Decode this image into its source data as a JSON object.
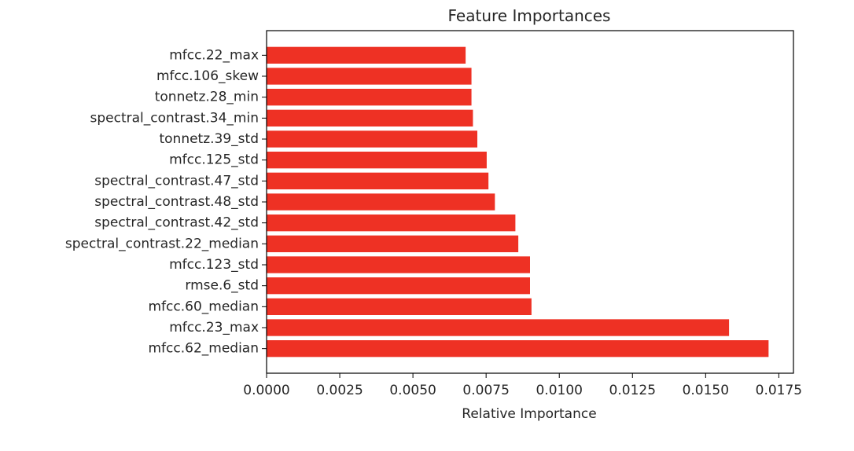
{
  "chart_data": {
    "type": "bar",
    "orientation": "horizontal",
    "title": "Feature Importances",
    "xlabel": "Relative Importance",
    "ylabel": "",
    "xlim": [
      0,
      0.018
    ],
    "xticks": [
      "0.0000",
      "0.0025",
      "0.0050",
      "0.0075",
      "0.0100",
      "0.0125",
      "0.0150",
      "0.0175"
    ],
    "xtick_values": [
      0,
      0.0025,
      0.005,
      0.0075,
      0.01,
      0.0125,
      0.015,
      0.0175
    ],
    "bar_color": "#ee3124",
    "grid": false,
    "categories": [
      "mfcc.62_median",
      "mfcc.23_max",
      "mfcc.60_median",
      "rmse.6_std",
      "mfcc.123_std",
      "spectral_contrast.22_median",
      "spectral_contrast.42_std",
      "spectral_contrast.48_std",
      "spectral_contrast.47_std",
      "mfcc.125_std",
      "tonnetz.39_std",
      "spectral_contrast.34_min",
      "tonnetz.28_min",
      "mfcc.106_skew",
      "mfcc.22_max"
    ],
    "values": [
      0.01715,
      0.0158,
      0.00905,
      0.009,
      0.009,
      0.0086,
      0.0085,
      0.0078,
      0.00758,
      0.00752,
      0.0072,
      0.00705,
      0.007,
      0.007,
      0.0068
    ]
  }
}
